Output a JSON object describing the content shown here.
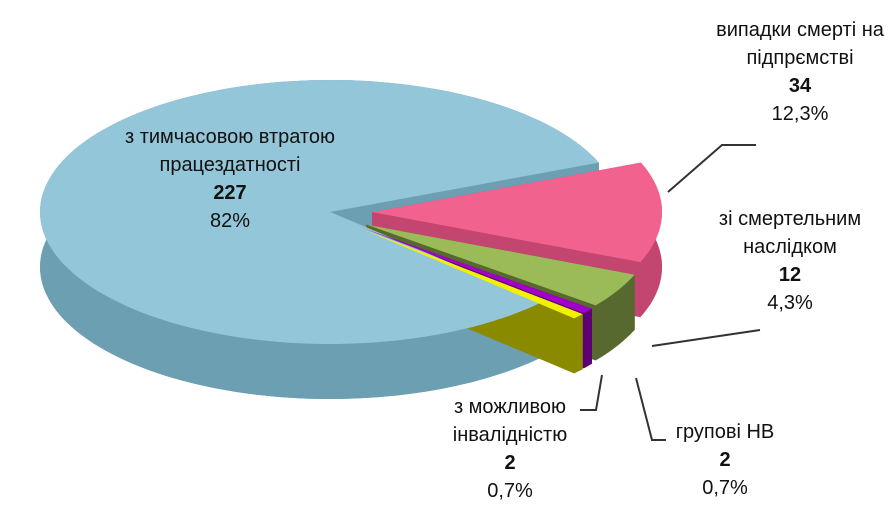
{
  "chart_data": {
    "type": "pie",
    "categories": [
      "з тимчасовою втратою працездатності",
      "випадки смерті на підпрємстві",
      "зі смертельним наслідком",
      "групові НВ",
      "з можливою інвалідністю"
    ],
    "values": [
      227,
      34,
      12,
      2,
      2
    ],
    "percents": [
      82,
      12.3,
      4.3,
      0.7,
      0.7
    ],
    "percent_labels": [
      "82%",
      "12,3%",
      "4,3%",
      "0,7%",
      "0,7%"
    ],
    "colors": [
      "#93c6d8",
      "#f2628f",
      "#9bbb59",
      "#a100c8",
      "#f2f200"
    ],
    "side_colors": [
      "#6c9fb1",
      "#c24670",
      "#58692f",
      "#5e0075",
      "#8a8a00"
    ]
  }
}
